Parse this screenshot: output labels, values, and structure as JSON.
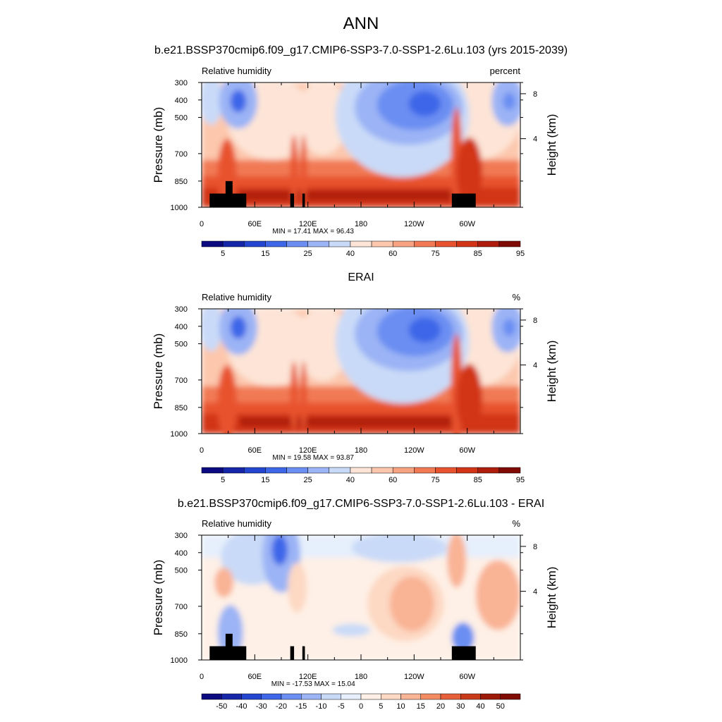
{
  "figure": {
    "title": "ANN",
    "panels": [
      {
        "case_title": "b.e21.BSSP370cmip6.f09_g17.CMIP6-SSP3-7.0-SSP1-2.6Lu.103 (yrs 2015-2039)",
        "left_label": "Relative humidity",
        "right_label": "percent",
        "minmax": "MIN =  17.41  MAX =  96.43",
        "colorbar_labels": [
          "5",
          "15",
          "25",
          "40",
          "60",
          "75",
          "85",
          "95"
        ],
        "palette": "full"
      },
      {
        "case_title": "ERAI",
        "left_label": "Relative humidity",
        "right_label": "%",
        "minmax": "MIN =  19.58  MAX =  93.87",
        "colorbar_labels": [
          "5",
          "15",
          "25",
          "40",
          "60",
          "75",
          "85",
          "95"
        ],
        "palette": "full"
      },
      {
        "case_title": "b.e21.BSSP370cmip6.f09_g17.CMIP6-SSP3-7.0-SSP1-2.6Lu.103 - ERAI",
        "left_label": "Relative humidity",
        "right_label": "%",
        "minmax": "MIN = -17.53  MAX =  15.04",
        "colorbar_labels": [
          "-50",
          "-40",
          "-30",
          "-20",
          "-15",
          "-10",
          "-5",
          "0",
          "5",
          "10",
          "15",
          "20",
          "30",
          "40",
          "50"
        ],
        "palette": "diff"
      }
    ]
  },
  "colors": {
    "full": [
      "#0b0a80",
      "#1526a8",
      "#2345d0",
      "#3e66e8",
      "#6a8ef2",
      "#9bb4f5",
      "#c9daf8",
      "#fde4d6",
      "#fcc7ad",
      "#f7a381",
      "#f17a55",
      "#e8522f",
      "#d23418",
      "#ae1d0c",
      "#800a04"
    ],
    "diff": [
      "#0b0a80",
      "#1526a8",
      "#2345d0",
      "#3e66e8",
      "#6a8ef2",
      "#9bb4f5",
      "#c9daf8",
      "#e6effc",
      "#fef0e6",
      "#fdd8c3",
      "#f9b395",
      "#f28b62",
      "#e65f38",
      "#c93a1a",
      "#9e1a08",
      "#800a04"
    ]
  },
  "chart_data": [
    {
      "type": "heatmap",
      "title": "b.e21.BSSP370cmip6.f09_g17.CMIP6-SSP3-7.0-SSP1-2.6Lu.103 (yrs 2015-2039)",
      "variable": "Relative humidity",
      "units": "percent",
      "xlabel": "",
      "ylabel": "Pressure (mb)",
      "y2label": "Height (km)",
      "x_ticks": [
        "0",
        "60E",
        "120E",
        "180",
        "120W",
        "60W"
      ],
      "y_ticks": [
        "300",
        "400",
        "500",
        "700",
        "850",
        "1000"
      ],
      "y2_ticks": [
        "8",
        "4"
      ],
      "levels": [
        5,
        10,
        15,
        20,
        25,
        30,
        40,
        50,
        60,
        70,
        75,
        80,
        85,
        90,
        95
      ],
      "min": 17.41,
      "max": 96.43
    },
    {
      "type": "heatmap",
      "title": "ERAI",
      "variable": "Relative humidity",
      "units": "%",
      "xlabel": "",
      "ylabel": "Pressure (mb)",
      "y2label": "Height (km)",
      "x_ticks": [
        "0",
        "60E",
        "120E",
        "180",
        "120W",
        "60W"
      ],
      "y_ticks": [
        "300",
        "400",
        "500",
        "700",
        "850",
        "1000"
      ],
      "y2_ticks": [
        "8",
        "4"
      ],
      "levels": [
        5,
        10,
        15,
        20,
        25,
        30,
        40,
        50,
        60,
        70,
        75,
        80,
        85,
        90,
        95
      ],
      "min": 19.58,
      "max": 93.87
    },
    {
      "type": "heatmap",
      "title": "b.e21.BSSP370cmip6.f09_g17.CMIP6-SSP3-7.0-SSP1-2.6Lu.103 - ERAI",
      "variable": "Relative humidity",
      "units": "%",
      "xlabel": "",
      "ylabel": "Pressure (mb)",
      "y2label": "Height (km)",
      "x_ticks": [
        "0",
        "60E",
        "120E",
        "180",
        "120W",
        "60W"
      ],
      "y_ticks": [
        "300",
        "400",
        "500",
        "700",
        "850",
        "1000"
      ],
      "y2_ticks": [
        "8",
        "4"
      ],
      "levels": [
        -50,
        -40,
        -30,
        -20,
        -15,
        -10,
        -5,
        0,
        5,
        10,
        15,
        20,
        30,
        40,
        50
      ],
      "min": -17.53,
      "max": 15.04
    }
  ]
}
